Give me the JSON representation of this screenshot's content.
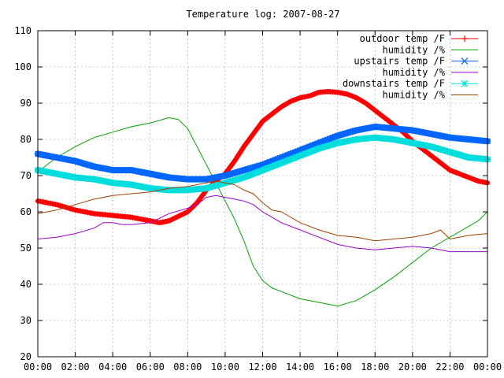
{
  "chart_data": {
    "type": "line",
    "title": "Temperature log: 2007-08-27",
    "xlabel": "",
    "ylabel": "",
    "xlim": [
      0,
      24
    ],
    "ylim": [
      20,
      110
    ],
    "grid": true,
    "legend_position": "top-right",
    "x_tick_labels": [
      "00:00",
      "02:00",
      "04:00",
      "06:00",
      "08:00",
      "10:00",
      "12:00",
      "14:00",
      "16:00",
      "18:00",
      "20:00",
      "22:00",
      "00:00"
    ],
    "y_tick_labels": [
      "20",
      "30",
      "40",
      "50",
      "60",
      "70",
      "80",
      "90",
      "100",
      "110"
    ],
    "series": [
      {
        "name": "outdoor temp /F",
        "color": "#ff0000",
        "marker": "plus",
        "x": [
          0,
          1,
          2,
          3,
          4,
          5,
          6,
          6.5,
          7,
          8,
          8.5,
          9,
          9.5,
          10,
          10.5,
          11,
          11.5,
          12,
          12.5,
          13,
          13.5,
          14,
          14.5,
          15,
          15.5,
          16,
          16.5,
          17,
          17.5,
          18,
          18.5,
          19,
          19.5,
          20,
          20.5,
          21,
          21.5,
          22,
          22.5,
          23,
          23.5,
          24
        ],
        "values": [
          63,
          62,
          60.5,
          59.5,
          59,
          58.5,
          57.5,
          57,
          57.5,
          60,
          62.5,
          66,
          68.5,
          70.5,
          74,
          78,
          81.5,
          85,
          87,
          89,
          90.5,
          91.5,
          92,
          93,
          93.2,
          93,
          92.5,
          91.5,
          90,
          88,
          86,
          84,
          82,
          79.5,
          77.5,
          75.5,
          73.5,
          71.5,
          70.5,
          69.5,
          68.5,
          68
        ]
      },
      {
        "name": "humidity /%",
        "color": "#00a000",
        "marker": "none",
        "x": [
          0,
          1,
          2,
          3,
          4,
          5,
          6,
          7,
          7.5,
          8,
          8.5,
          9,
          9.5,
          10,
          10.5,
          11,
          11.5,
          12,
          12.5,
          13,
          13.5,
          14,
          15,
          16,
          17,
          18,
          19,
          20,
          21,
          22,
          22.5,
          23,
          23.5,
          24
        ],
        "values": [
          71,
          75,
          78,
          80.5,
          82,
          83.5,
          84.5,
          86,
          85.5,
          83,
          78,
          73,
          68,
          63,
          58,
          52,
          45,
          41,
          39,
          38,
          37,
          36,
          35,
          34,
          35.5,
          38.5,
          42,
          46,
          50,
          53,
          54.5,
          56,
          57.5,
          60
        ]
      },
      {
        "name": "upstairs temp /F",
        "color": "#0066ff",
        "marker": "cross",
        "x": [
          0,
          1,
          2,
          3,
          4,
          5,
          6,
          7,
          8,
          9,
          10,
          11,
          12,
          13,
          14,
          15,
          16,
          17,
          18,
          19,
          20,
          21,
          22,
          23,
          24
        ],
        "values": [
          76,
          75,
          74,
          72.5,
          71.5,
          71.5,
          70.5,
          69.5,
          69,
          69,
          70,
          71.5,
          73,
          75,
          77,
          79,
          81,
          82.5,
          83.5,
          83,
          82.5,
          81.5,
          80.5,
          80,
          79.5
        ]
      },
      {
        "name": "humidity /%",
        "color": "#9900cc",
        "marker": "none",
        "x": [
          0,
          1,
          2,
          3,
          3.5,
          4,
          4.5,
          5,
          6,
          7,
          8,
          8.5,
          9,
          9.5,
          10,
          10.5,
          11,
          11.5,
          12,
          12.5,
          13,
          14,
          15,
          16,
          17,
          18,
          19,
          20,
          21,
          22,
          23,
          24
        ],
        "values": [
          52.5,
          53,
          54,
          55.5,
          57,
          57,
          56.5,
          56.5,
          57,
          59.5,
          61,
          62,
          64,
          64.5,
          64,
          63.5,
          63,
          62,
          60,
          58.5,
          57,
          55,
          53,
          51,
          50,
          49.5,
          50,
          50.5,
          50,
          49,
          49,
          49
        ]
      },
      {
        "name": "downstairs temp /F",
        "color": "#00dddd",
        "marker": "star",
        "x": [
          0,
          1,
          2,
          3,
          4,
          5,
          6,
          7,
          8,
          9,
          10,
          11,
          12,
          13,
          14,
          15,
          16,
          17,
          18,
          19,
          20,
          21,
          22,
          23,
          24
        ],
        "values": [
          71.5,
          70.5,
          69.5,
          69,
          68,
          67.5,
          66.5,
          66,
          66,
          66.5,
          68,
          69.5,
          71.5,
          73.5,
          75.5,
          77.5,
          79,
          80,
          80.5,
          80,
          79,
          78,
          76.5,
          75,
          74.5
        ]
      },
      {
        "name": "humidity /%",
        "color": "#a04000",
        "marker": "none",
        "x": [
          0,
          1,
          2,
          3,
          4,
          5,
          6,
          7,
          8,
          9,
          9.5,
          10,
          10.5,
          11,
          11.5,
          12,
          12.5,
          13,
          14,
          15,
          16,
          17,
          18,
          19,
          20,
          21,
          21.5,
          22,
          23,
          24
        ],
        "values": [
          59.5,
          60.5,
          62,
          63.5,
          64.5,
          65,
          65.5,
          66.5,
          67,
          68,
          68.5,
          68,
          67.5,
          66,
          65,
          62.5,
          60.5,
          60,
          57,
          55,
          53.5,
          53,
          52,
          52.5,
          53,
          54,
          55,
          52.5,
          53.5,
          54
        ]
      }
    ]
  }
}
